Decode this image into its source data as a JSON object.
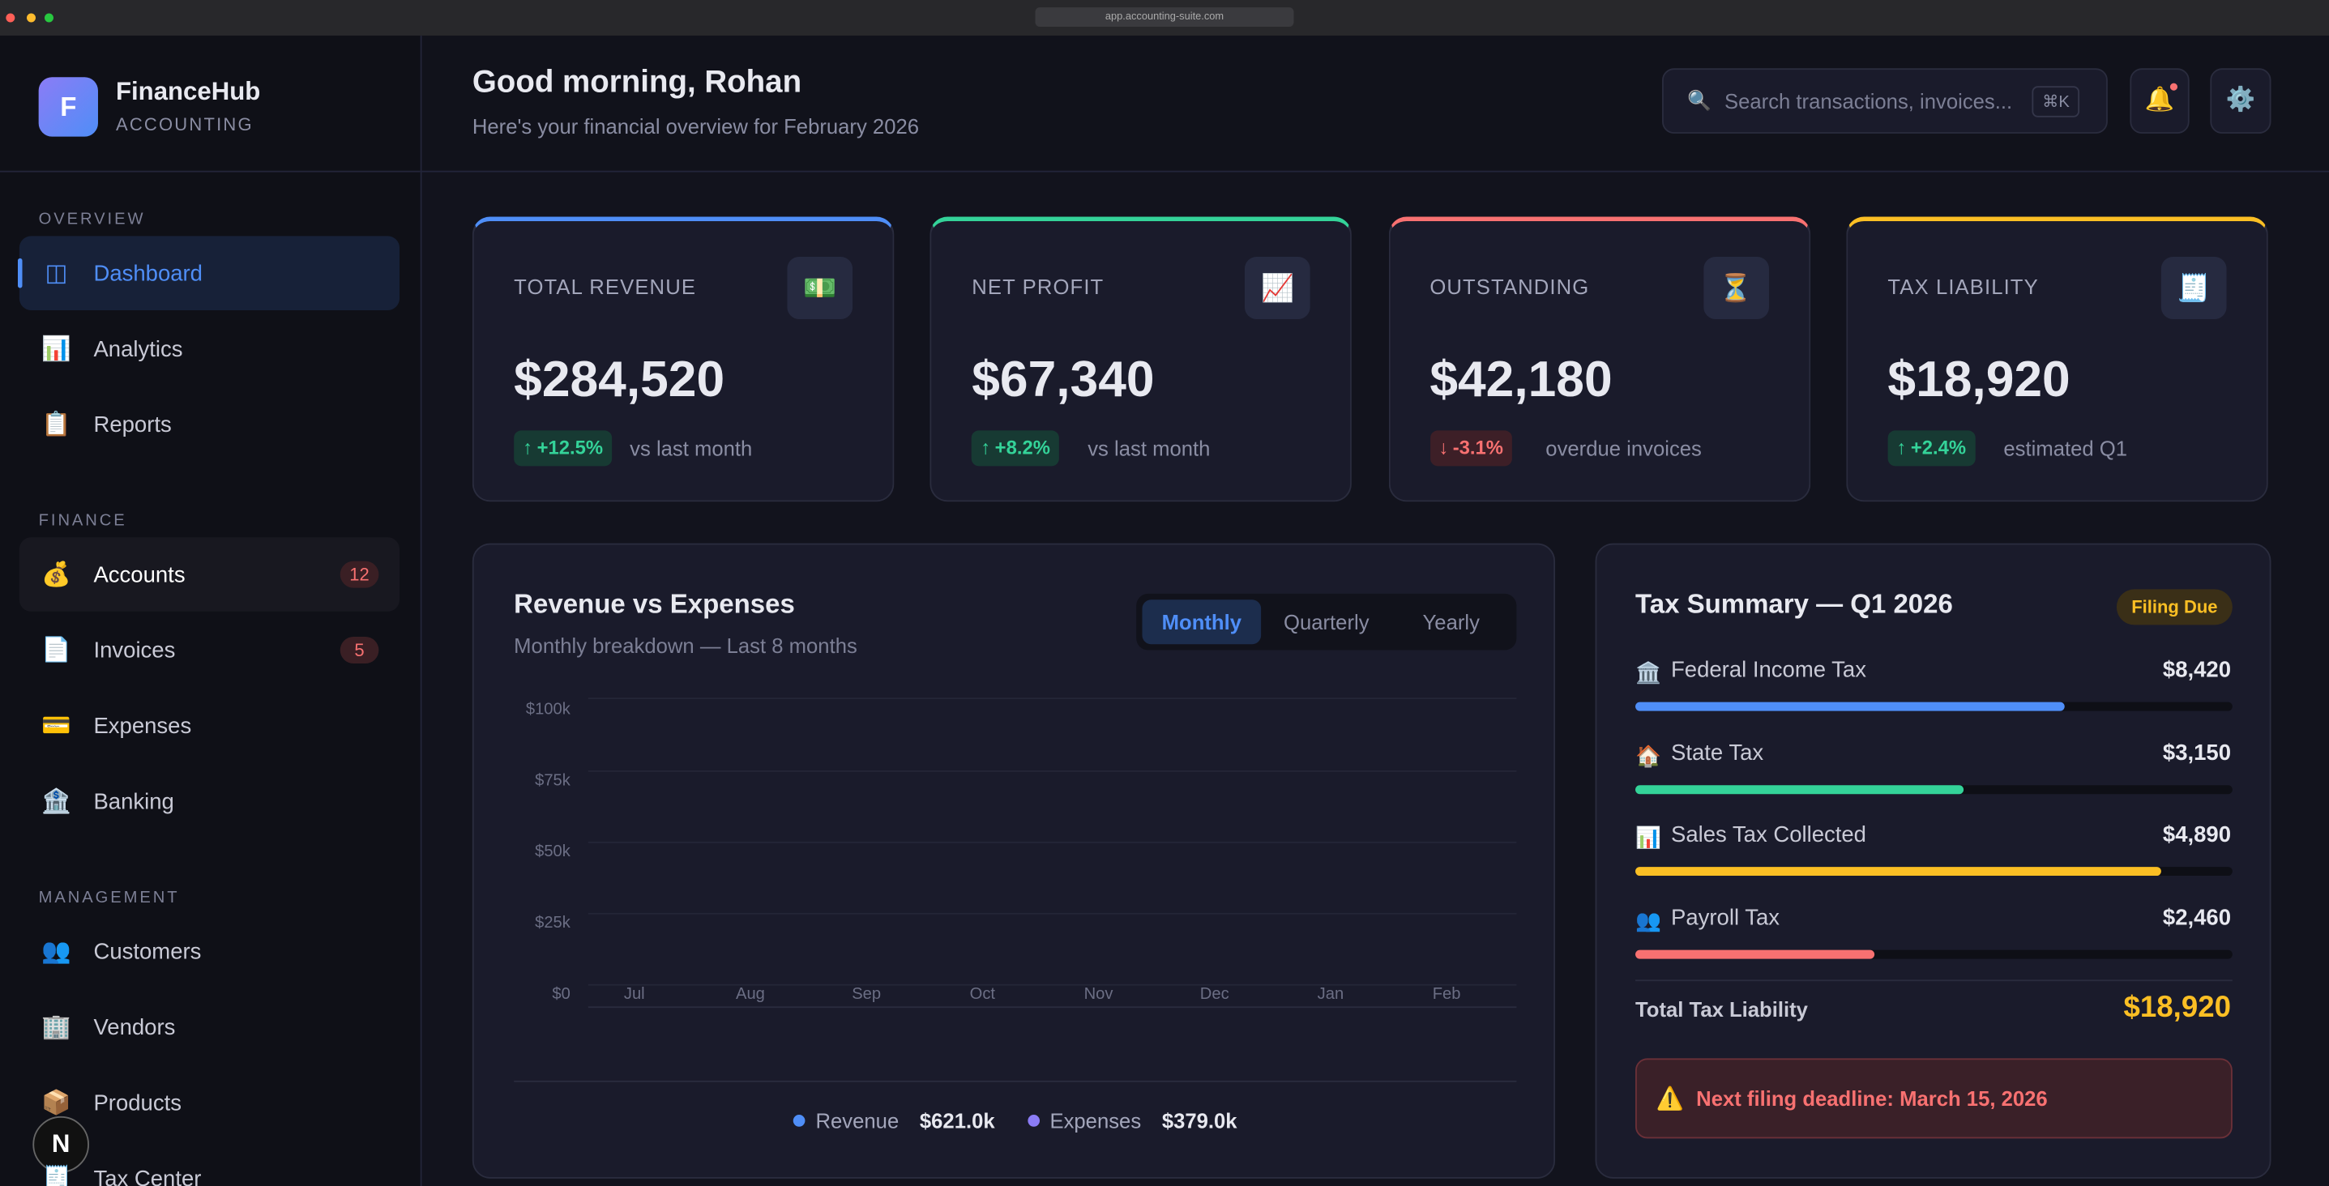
{
  "browser": {
    "url": "app.accounting-suite.com"
  },
  "sidebar": {
    "logo_letter": "F",
    "brand": "FinanceHub",
    "tagline": "ACCOUNTING",
    "sections": [
      {
        "title": "OVERVIEW",
        "items": [
          {
            "icon": "◫",
            "label": "Dashboard",
            "active": true
          },
          {
            "icon": "📊",
            "label": "Analytics"
          },
          {
            "icon": "📋",
            "label": "Reports"
          }
        ]
      },
      {
        "title": "FINANCE",
        "items": [
          {
            "icon": "💰",
            "label": "Accounts",
            "badge": 12,
            "hover": true
          },
          {
            "icon": "📄",
            "label": "Invoices",
            "badge": 5
          },
          {
            "icon": "💳",
            "label": "Expenses"
          },
          {
            "icon": "🏦",
            "label": "Banking"
          }
        ]
      },
      {
        "title": "MANAGEMENT",
        "items": [
          {
            "icon": "👥",
            "label": "Customers"
          },
          {
            "icon": "🏢",
            "label": "Vendors"
          },
          {
            "icon": "📦",
            "label": "Products"
          },
          {
            "icon": "🧾",
            "label": "Tax Center"
          }
        ]
      }
    ],
    "avatar": "N"
  },
  "header": {
    "greeting": "Good morning, Rohan",
    "subtitle": "Here's your financial overview for February 2026",
    "search_icon": "🔍",
    "search_placeholder": "Search transactions, invoices...",
    "shortcut": "⌘K",
    "bell_icon": "🔔",
    "settings_icon": "⚙️"
  },
  "cards": [
    {
      "label": "TOTAL REVENUE",
      "icon": "💵",
      "color": "#4f8ef7",
      "value": "$284,520",
      "arrow": "↑",
      "change": "+12.5%",
      "direction": "up",
      "note": "vs last month"
    },
    {
      "label": "NET PROFIT",
      "icon": "📈",
      "color": "#34d399",
      "value": "$67,340",
      "arrow": "↑",
      "change": "+8.2%",
      "direction": "up",
      "note": "vs last month"
    },
    {
      "label": "OUTSTANDING",
      "icon": "⏳",
      "color": "#f87171",
      "value": "$42,180",
      "arrow": "↓",
      "change": "-3.1%",
      "direction": "down",
      "note": "overdue invoices"
    },
    {
      "label": "TAX LIABILITY",
      "icon": "🧾",
      "color": "#fbbf24",
      "value": "$18,920",
      "arrow": "↑",
      "change": "+2.4%",
      "direction": "up",
      "note": "estimated Q1"
    }
  ],
  "chart_panel": {
    "title": "Revenue vs Expenses",
    "subtitle": "Monthly breakdown — Last 8 months",
    "tabs": [
      "Monthly",
      "Quarterly",
      "Yearly"
    ],
    "active_tab": 0,
    "y_labels": [
      "$100k",
      "$75k",
      "$50k",
      "$25k",
      "$0"
    ],
    "categories": [
      "Jul",
      "Aug",
      "Sep",
      "Oct",
      "Nov",
      "Dec",
      "Jan",
      "Feb"
    ],
    "legend": [
      {
        "name": "Revenue",
        "color": "#4f8ef7",
        "total": "$621.0k"
      },
      {
        "name": "Expenses",
        "color": "#8b7cf6",
        "total": "$379.0k"
      }
    ]
  },
  "tax_panel": {
    "title": "Tax Summary — Q1 2026",
    "badge": "Filing Due",
    "items": [
      {
        "icon": "🏛️",
        "label": "Federal Income Tax",
        "amount": "$8,420",
        "color": "#4f8ef7",
        "fill_pct": 72
      },
      {
        "icon": "🏠",
        "label": "State Tax",
        "amount": "$3,150",
        "color": "#34d399",
        "fill_pct": 55
      },
      {
        "icon": "📊",
        "label": "Sales Tax Collected",
        "amount": "$4,890",
        "color": "#fbbf24",
        "fill_pct": 88
      },
      {
        "icon": "👥",
        "label": "Payroll Tax",
        "amount": "$2,460",
        "color": "#f87171",
        "fill_pct": 40
      }
    ],
    "total_label": "Total Tax Liability",
    "total_value": "$18,920",
    "alert_icon": "⚠️",
    "alert_text": "Next filing deadline: March 15, 2026"
  }
}
